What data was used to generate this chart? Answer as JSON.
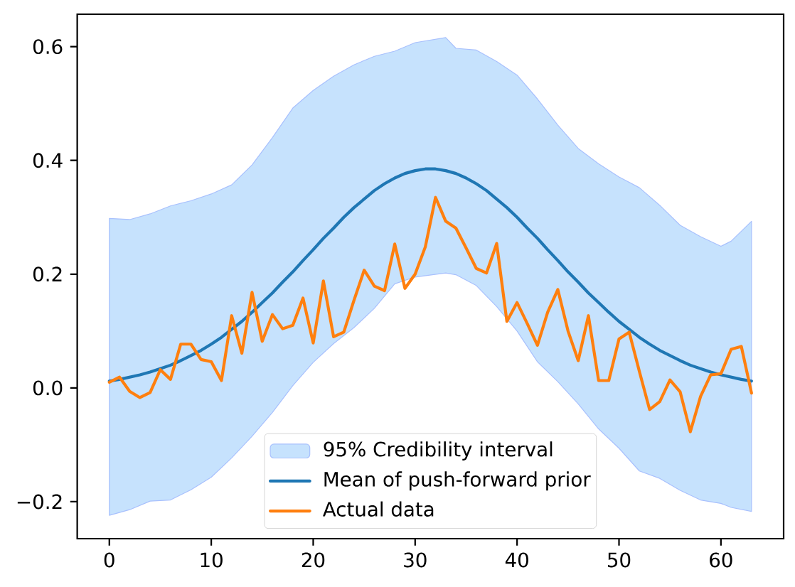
{
  "chart_data": {
    "type": "line",
    "xlim": [
      -3.15,
      66.15
    ],
    "ylim": [
      -0.265,
      0.657
    ],
    "xticks": [
      0,
      10,
      20,
      30,
      40,
      50,
      60
    ],
    "yticks": [
      {
        "value": -0.2,
        "label": "−0.2"
      },
      {
        "value": 0.0,
        "label": "0.0"
      },
      {
        "value": 0.2,
        "label": "0.2"
      },
      {
        "value": 0.4,
        "label": "0.4"
      },
      {
        "value": 0.6,
        "label": "0.6"
      }
    ],
    "legend": "bottom",
    "series": [
      {
        "name": "95% Credibility interval",
        "type": "area",
        "color": "#c6e2fd",
        "x": [
          0,
          2,
          4,
          6,
          8,
          10,
          12,
          14,
          16,
          18,
          20,
          22,
          24,
          26,
          28,
          30,
          33,
          34,
          36,
          38,
          40,
          42,
          44,
          46,
          48,
          50,
          52,
          54,
          56,
          58,
          60,
          61,
          63
        ],
        "values": [
          null,
          null,
          null,
          null,
          null,
          null,
          null,
          null,
          null,
          null,
          null,
          null,
          null,
          null,
          null,
          null,
          null,
          null,
          null,
          null,
          null,
          null,
          null,
          null,
          null,
          null,
          null,
          null,
          null,
          null,
          null,
          null,
          null
        ],
        "upper": [
          0.298,
          0.296,
          0.306,
          0.32,
          0.329,
          0.341,
          0.357,
          0.392,
          0.44,
          0.492,
          0.523,
          0.548,
          0.568,
          0.583,
          0.592,
          0.607,
          0.616,
          0.597,
          0.594,
          0.574,
          0.55,
          0.508,
          0.462,
          0.421,
          0.394,
          0.371,
          0.352,
          0.321,
          0.286,
          0.266,
          0.249,
          0.258,
          0.293
        ],
        "lower": [
          -0.224,
          -0.214,
          -0.199,
          -0.197,
          -0.179,
          -0.157,
          -0.123,
          -0.085,
          -0.043,
          0.004,
          0.045,
          0.078,
          0.106,
          0.14,
          0.183,
          0.195,
          0.202,
          0.199,
          0.18,
          0.143,
          0.1,
          0.046,
          0.011,
          -0.028,
          -0.072,
          -0.106,
          -0.146,
          -0.159,
          -0.18,
          -0.197,
          -0.203,
          -0.21,
          -0.217
        ]
      },
      {
        "name": "Mean of push-forward prior",
        "color": "#1f77b4",
        "x": [
          0,
          1,
          2,
          3,
          4,
          5,
          6,
          7,
          8,
          9,
          10,
          11,
          12,
          13,
          14,
          15,
          16,
          17,
          18,
          19,
          20,
          21,
          22,
          23,
          24,
          25,
          26,
          27,
          28,
          29,
          30,
          31,
          32,
          33,
          34,
          35,
          36,
          37,
          38,
          39,
          40,
          41,
          42,
          43,
          44,
          45,
          46,
          47,
          48,
          49,
          50,
          51,
          52,
          53,
          54,
          55,
          56,
          57,
          58,
          59,
          60,
          61,
          62,
          63
        ],
        "values": [
          0.012,
          0.015,
          0.019,
          0.023,
          0.028,
          0.034,
          0.04,
          0.048,
          0.057,
          0.066,
          0.077,
          0.089,
          0.103,
          0.117,
          0.133,
          0.15,
          0.167,
          0.186,
          0.204,
          0.224,
          0.243,
          0.263,
          0.281,
          0.3,
          0.317,
          0.332,
          0.347,
          0.359,
          0.369,
          0.377,
          0.382,
          0.385,
          0.385,
          0.382,
          0.377,
          0.369,
          0.359,
          0.347,
          0.332,
          0.317,
          0.3,
          0.281,
          0.263,
          0.243,
          0.224,
          0.204,
          0.186,
          0.167,
          0.15,
          0.133,
          0.117,
          0.103,
          0.089,
          0.077,
          0.066,
          0.057,
          0.048,
          0.04,
          0.034,
          0.028,
          0.023,
          0.019,
          0.015,
          0.012
        ]
      },
      {
        "name": "Actual data",
        "color": "#ff7f0e",
        "x": [
          0,
          1,
          2,
          3,
          4,
          5,
          6,
          7,
          8,
          9,
          10,
          11,
          12,
          13,
          14,
          15,
          16,
          17,
          18,
          19,
          20,
          21,
          22,
          23,
          24,
          25,
          26,
          27,
          28,
          29,
          30,
          31,
          32,
          33,
          34,
          35,
          36,
          37,
          38,
          39,
          40,
          41,
          42,
          43,
          44,
          45,
          46,
          47,
          48,
          49,
          50,
          51,
          52,
          53,
          54,
          55,
          56,
          57,
          58,
          59,
          60,
          61,
          62,
          63
        ],
        "values": [
          0.01,
          0.019,
          -0.006,
          -0.017,
          -0.008,
          0.032,
          0.015,
          0.077,
          0.077,
          0.05,
          0.046,
          0.013,
          0.127,
          0.061,
          0.168,
          0.082,
          0.129,
          0.104,
          0.11,
          0.158,
          0.079,
          0.188,
          0.09,
          0.098,
          0.154,
          0.207,
          0.179,
          0.171,
          0.253,
          0.175,
          0.2,
          0.248,
          0.335,
          0.293,
          0.281,
          0.246,
          0.21,
          0.202,
          0.254,
          0.117,
          0.15,
          0.113,
          0.075,
          0.133,
          0.173,
          0.1,
          0.048,
          0.127,
          0.013,
          0.013,
          0.086,
          0.098,
          0.029,
          -0.038,
          -0.024,
          0.014,
          -0.007,
          -0.077,
          -0.015,
          0.023,
          0.025,
          0.068,
          0.073,
          -0.009
        ]
      }
    ]
  }
}
